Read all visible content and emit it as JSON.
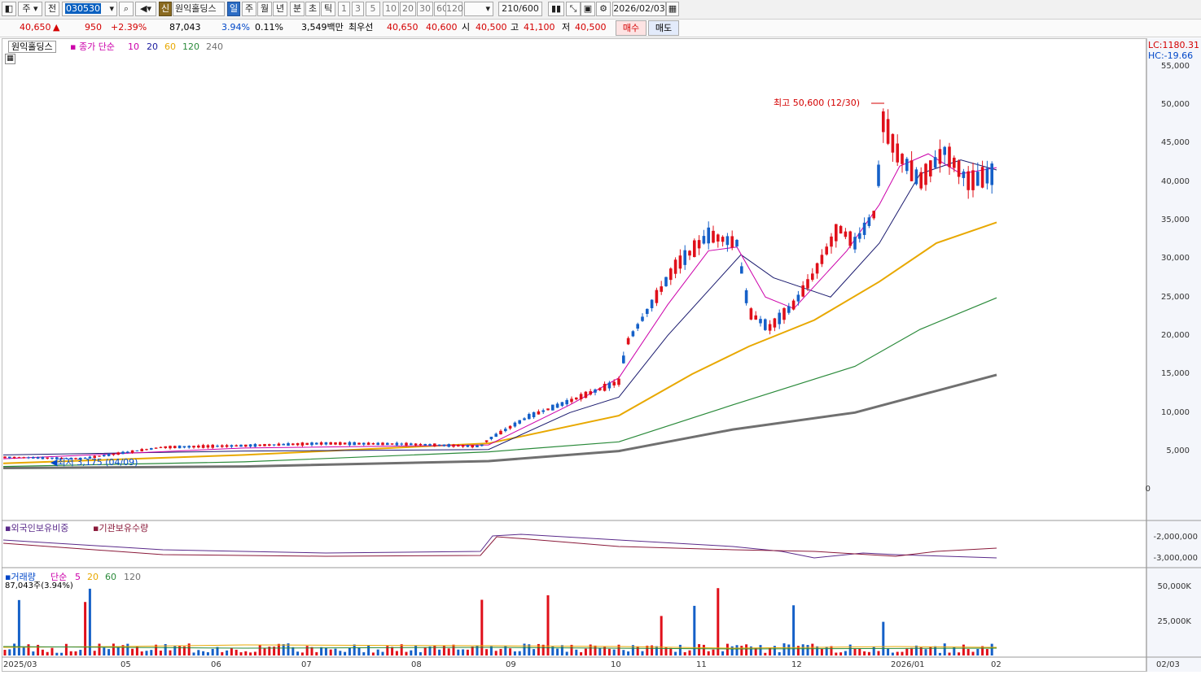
{
  "toolbar": {
    "market": "주",
    "scope": "전",
    "code": "030530",
    "badge": "신",
    "name": "원익홀딩스",
    "periods": [
      "일",
      "주",
      "월",
      "년",
      "분",
      "초",
      "틱"
    ],
    "active_period": "일",
    "intervals": [
      "1",
      "3",
      "5",
      "10",
      "20",
      "30",
      "60",
      "120"
    ],
    "count": "210/600",
    "date": "2026/02/03"
  },
  "quote": {
    "price": "40,650",
    "arrow": "▲",
    "change": "950",
    "change_pct": "+2.39%",
    "volume": "87,043",
    "turnover_pct": "3.94%",
    "foreign_pct": "0.11%",
    "amount": "3,549백만",
    "best_label": "최우선",
    "ask": "40,650",
    "bid": "40,600",
    "open_label": "시",
    "open": "40,500",
    "high_label": "고",
    "high": "41,100",
    "low_label": "저",
    "low": "40,500",
    "buy_label": "매수",
    "sell_label": "매도",
    "colors": {
      "up": "#d40000",
      "down": "#0047c8"
    }
  },
  "price_panel": {
    "title": "원익홀딩스",
    "ma_label": "종가 단순",
    "ma_periods": [
      "10",
      "20",
      "60",
      "120",
      "240"
    ],
    "ma_colors": [
      "#cc00aa",
      "#1a1a6e",
      "#e8a800",
      "#2a8a3a",
      "#707070"
    ],
    "lc": "LC:1180.31",
    "hc": "HC:-19.66",
    "y_ticks": [
      "55,000",
      "50,000",
      "45,000",
      "40,000",
      "35,000",
      "30,000",
      "25,000",
      "20,000",
      "15,000",
      "10,000",
      "5,000",
      "0"
    ],
    "high_annotation": "최고 50,600 (12/30)",
    "low_annotation": "최저 3,175 (04/09)"
  },
  "holding_panel": {
    "label_foreign": "외국인보유비중",
    "label_inst": "기관보유수량",
    "y_ticks": [
      "-2,000,000",
      "-3,000,000"
    ]
  },
  "volume_panel": {
    "label": "거래량",
    "ma_label": "단순",
    "ma_periods": [
      "5",
      "20",
      "60",
      "120"
    ],
    "current": "87,043주(3.94%)",
    "y_ticks": [
      "50,000K",
      "25,000K"
    ]
  },
  "x_axis": [
    "2025/03",
    "05",
    "06",
    "07",
    "08",
    "09",
    "10",
    "11",
    "12",
    "2026/01",
    "02"
  ],
  "x_axis_right": "02/03"
}
